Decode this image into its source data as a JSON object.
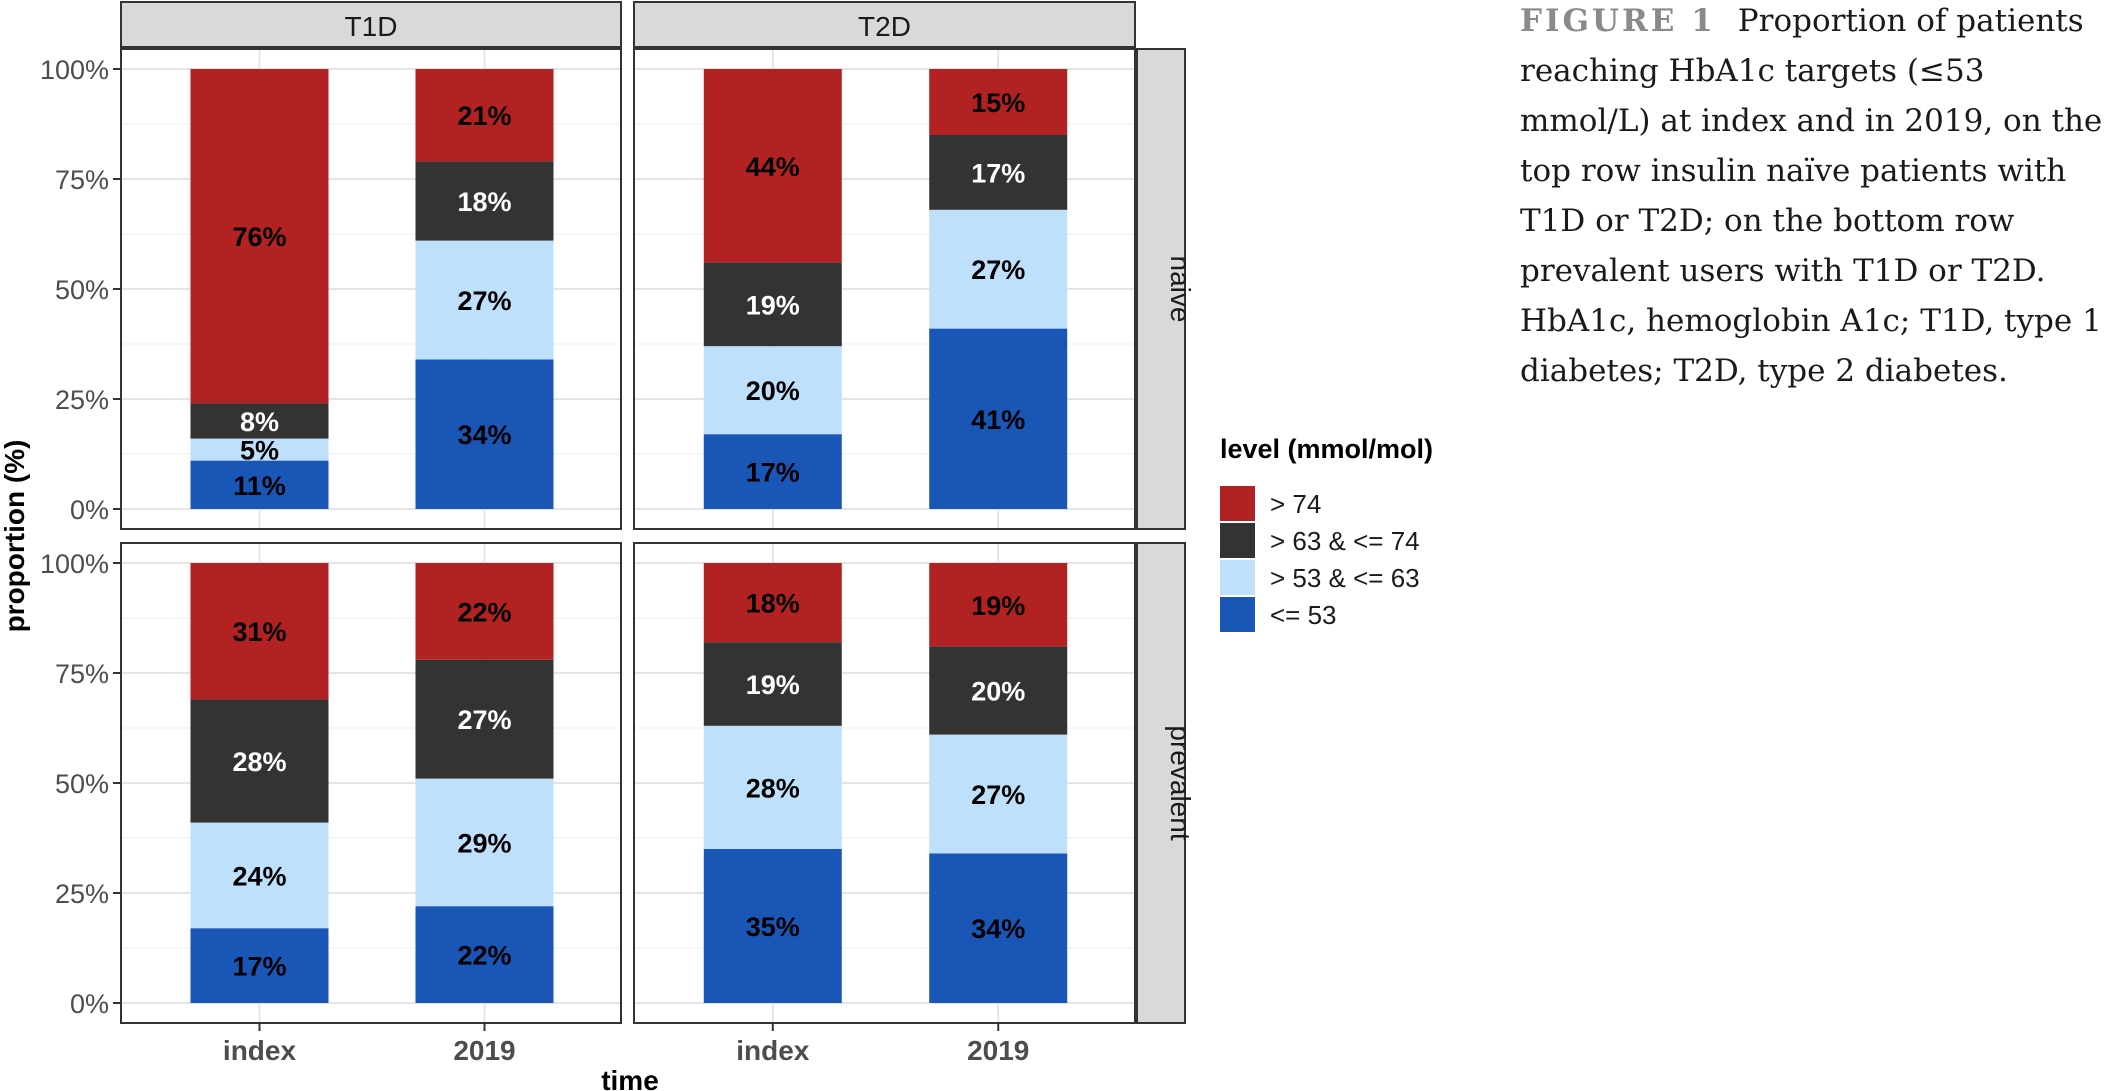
{
  "caption": {
    "label": "FIGURE 1",
    "text": "Proportion of patients reaching HbA1c targets (≤53 mmol/L) at index and in 2019, on the top row insulin naïve patients with T1D or T2D; on the bottom row prevalent users with T1D or T2D. HbA1c, hemoglobin A1c; T1D, type 1 diabetes; T2D, type 2 diabetes."
  },
  "chart_data": {
    "type": "bar",
    "stacked": true,
    "facet_columns": [
      "T1D",
      "T2D"
    ],
    "facet_rows": [
      "naive",
      "prevalent"
    ],
    "categories": [
      "index",
      "2019"
    ],
    "xlabel": "time",
    "ylabel": "proportion (%)",
    "ylim": [
      0,
      100
    ],
    "yticks": [
      "0%",
      "25%",
      "50%",
      "75%",
      "100%"
    ],
    "legend": {
      "title": "level (mmol/mol)",
      "placement": "right",
      "entries": [
        {
          "label": "> 74",
          "color": "#b22222"
        },
        {
          "label": "> 63 & <= 74",
          "color": "#333333"
        },
        {
          "label": "> 53 & <= 63",
          "color": "#bfe0fb"
        },
        {
          "label": "<= 53",
          "color": "#1a56b5"
        }
      ]
    },
    "panels": [
      {
        "column": "T1D",
        "row": "naive",
        "bars": [
          {
            "category": "index",
            "values": [
              11,
              5,
              8,
              76
            ]
          },
          {
            "category": "2019",
            "values": [
              34,
              27,
              18,
              21
            ]
          }
        ]
      },
      {
        "column": "T2D",
        "row": "naive",
        "bars": [
          {
            "category": "index",
            "values": [
              17,
              20,
              19,
              44
            ]
          },
          {
            "category": "2019",
            "values": [
              41,
              27,
              17,
              15
            ]
          }
        ]
      },
      {
        "column": "T1D",
        "row": "prevalent",
        "bars": [
          {
            "category": "index",
            "values": [
              17,
              24,
              28,
              31
            ]
          },
          {
            "category": "2019",
            "values": [
              22,
              29,
              27,
              22
            ]
          }
        ]
      },
      {
        "column": "T2D",
        "row": "prevalent",
        "bars": [
          {
            "category": "index",
            "values": [
              35,
              28,
              19,
              18
            ]
          },
          {
            "category": "2019",
            "values": [
              34,
              27,
              20,
              19
            ]
          }
        ]
      }
    ],
    "stack_order_bottom_to_top": [
      "<= 53",
      "> 53 & <= 63",
      "> 63 & <= 74",
      "> 74"
    ],
    "grid": true
  }
}
